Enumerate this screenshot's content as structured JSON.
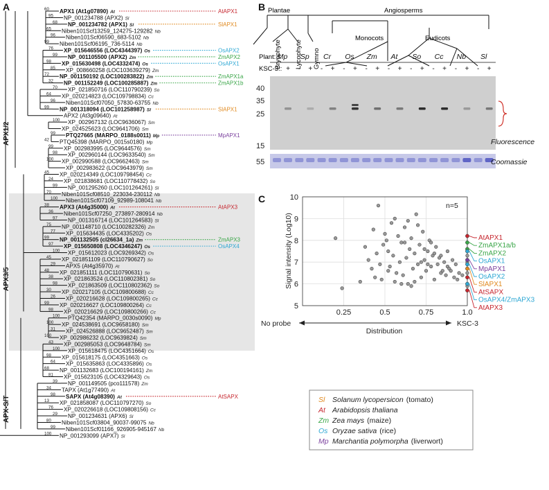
{
  "panels": {
    "a": "A",
    "b": "B",
    "c": "C"
  },
  "colors": {
    "Sl": "#e0891f",
    "At": "#c6262e",
    "Zm": "#3aa648",
    "Os": "#2fa8d4",
    "Mp": "#7a3f9d"
  },
  "panel_a": {
    "clades": [
      "APX1/2",
      "APX3/5",
      "APX-S/T"
    ],
    "leaves": [
      {
        "name": "APX1 (At1g07890)",
        "sp": "At",
        "bold": true,
        "ann": "AtAPX1",
        "annsp": "At",
        "boot": "60"
      },
      {
        "name": "NP_001234788 (APX2)",
        "sp": "Sl",
        "bold": false,
        "ann": "",
        "annsp": "",
        "boot": "95"
      },
      {
        "name": "NP_001234782 (APX1)",
        "sp": "Sl",
        "bold": true,
        "ann": "SlAPX1",
        "annsp": "Sl",
        "boot": "68"
      },
      {
        "name": "Niben101Scf13259_124275-129282",
        "sp": "Nb",
        "bold": false,
        "ann": "",
        "annsp": "",
        "boot": "65"
      },
      {
        "name": "Niben101Scf06590_683-5102",
        "sp": "Nb",
        "bold": false,
        "ann": "",
        "annsp": "",
        "boot": "96"
      },
      {
        "name": "Niben101Scf06195_736-5114",
        "sp": "Nb",
        "bold": false,
        "ann": "",
        "annsp": "",
        "boot": "99"
      },
      {
        "name": "XP_015646556 (LOC4344397)",
        "sp": "Os",
        "bold": true,
        "ann": "OsAPX2",
        "annsp": "Os",
        "boot": "76"
      },
      {
        "name": "NP_001105500 (APX2)",
        "sp": "Zm",
        "bold": true,
        "ann": "ZmAPX2",
        "annsp": "Zm",
        "boot": "99"
      },
      {
        "name": "XP_015630498 (LOC4332474)",
        "sp": "Os",
        "bold": true,
        "ann": "OsAPX1",
        "annsp": "Os",
        "boot": "98"
      },
      {
        "name": "XP_008660258 (LOC103639279)",
        "sp": "Zm",
        "bold": false,
        "ann": "",
        "annsp": "",
        "boot": "85"
      },
      {
        "name": "NP_001150192 (LOC100283822)",
        "sp": "Zm",
        "bold": true,
        "ann": "ZmAPX1a",
        "annsp": "Zm",
        "boot": "72"
      },
      {
        "name": "NP_001152249 (LOC100285887)",
        "sp": "Zm",
        "bold": true,
        "ann": "ZmAPX1b",
        "annsp": "Zm",
        "boot": "32"
      },
      {
        "name": "XP_021850716 (LOC110790239)",
        "sp": "So",
        "bold": false,
        "ann": "",
        "annsp": "",
        "boot": "70"
      },
      {
        "name": "XP_020214823 (LOC109798834)",
        "sp": "Cc",
        "bold": false,
        "ann": "",
        "annsp": "",
        "boot": "64"
      },
      {
        "name": "Niben101Scf07050_57830-63755",
        "sp": "Nb",
        "bold": false,
        "ann": "",
        "annsp": "",
        "boot": "96"
      },
      {
        "name": "NP_001318094 (LOC101258987)",
        "sp": "Sl",
        "bold": true,
        "ann": "SlAPX1",
        "annsp": "Sl",
        "boot": "99"
      },
      {
        "name": "APX2 (At3g09640)",
        "sp": "At",
        "bold": false,
        "ann": "",
        "annsp": "",
        "boot": ""
      },
      {
        "name": "XP_002967132 (LOC9636067)",
        "sp": "Sm",
        "bold": false,
        "ann": "",
        "annsp": "",
        "boot": "100"
      },
      {
        "name": "XP_024525623 (LOC9641706)",
        "sp": "Sm",
        "bold": false,
        "ann": "",
        "annsp": "",
        "boot": ""
      },
      {
        "name": "PTQ27665 (MARPO_0188s0011)",
        "sp": "Mp",
        "bold": true,
        "ann": "MpAPX1",
        "annsp": "Mp",
        "boot": "99"
      },
      {
        "name": "PTQ45398 (MARPO_0015s0180)",
        "sp": "Mp",
        "bold": false,
        "ann": "",
        "annsp": "",
        "boot": "42"
      },
      {
        "name": "XP_002983995 (LOC9644576)",
        "sp": "Sm",
        "bold": false,
        "ann": "",
        "annsp": "",
        "boot": "99"
      },
      {
        "name": "XP_002960144 (LOC9633540)",
        "sp": "Sm",
        "bold": false,
        "ann": "",
        "annsp": "",
        "boot": "98"
      },
      {
        "name": "XP_002990588 (LOC9662463)",
        "sp": "Sm",
        "bold": false,
        "ann": "",
        "annsp": "",
        "boot": "100"
      },
      {
        "name": "XP_002983622 (LOC9643979)",
        "sp": "Sm",
        "bold": false,
        "ann": "",
        "annsp": "",
        "boot": ""
      },
      {
        "name": "XP_020214349 (LOC109798454)",
        "sp": "Cc",
        "bold": false,
        "ann": "",
        "annsp": "",
        "boot": "45"
      },
      {
        "name": "XP_021838681 (LOC110778432)",
        "sp": "So",
        "bold": false,
        "ann": "",
        "annsp": "",
        "boot": "24"
      },
      {
        "name": "NP_001295260 (LOC101264261)",
        "sp": "Sl",
        "bold": false,
        "ann": "",
        "annsp": "",
        "boot": "99"
      },
      {
        "name": "Niben101Scf08510_223034-230112",
        "sp": "Nb",
        "bold": false,
        "ann": "",
        "annsp": "",
        "boot": "70"
      },
      {
        "name": "Niben101Scf07109_92989-108041",
        "sp": "Nb",
        "bold": false,
        "ann": "",
        "annsp": "",
        "boot": "100"
      },
      {
        "name": "APX3 (At4g35000)",
        "sp": "At",
        "bold": true,
        "ann": "AtAPX3",
        "annsp": "At",
        "boot": "38"
      },
      {
        "name": "Niben101Scf07250_273897-280914",
        "sp": "Nb",
        "bold": false,
        "ann": "",
        "annsp": "",
        "boot": "36"
      },
      {
        "name": "NP_001316714 (LOC101264583)",
        "sp": "Sl",
        "bold": false,
        "ann": "",
        "annsp": "",
        "boot": "97"
      },
      {
        "name": "NP_001148710 (LOC100282326)",
        "sp": "Zm",
        "bold": false,
        "ann": "",
        "annsp": "",
        "boot": "75"
      },
      {
        "name": "XP_015634435 (LOC4335202)",
        "sp": "Os",
        "bold": false,
        "ann": "",
        "annsp": "",
        "boot": "77"
      },
      {
        "name": "NP_001132505 (cl26634_1a)",
        "sp": "Zm",
        "bold": true,
        "ann": "ZmAPX3",
        "annsp": "Zm",
        "boot": "99"
      },
      {
        "name": "XP_015650808 (LOC4346247)",
        "sp": "Os",
        "bold": true,
        "ann": "OsAPX4",
        "annsp": "Os",
        "boot": "97"
      },
      {
        "name": "XP_015612023 (LOC9269342)",
        "sp": "Os",
        "bold": false,
        "ann": "",
        "annsp": "",
        "boot": "100"
      },
      {
        "name": "XP_021851109 (LOC110790627)",
        "sp": "So",
        "bold": false,
        "ann": "",
        "annsp": "",
        "boot": "45"
      },
      {
        "name": "APX5 (At4g35970)",
        "sp": "At",
        "bold": false,
        "ann": "",
        "annsp": "",
        "boot": "29"
      },
      {
        "name": "XP_021851111 (LOC110790631)",
        "sp": "So",
        "bold": false,
        "ann": "",
        "annsp": "",
        "boot": "48"
      },
      {
        "name": "XP_021863524 (LOC110802381)",
        "sp": "So",
        "bold": false,
        "ann": "",
        "annsp": "",
        "boot": "38"
      },
      {
        "name": "XP_021863509 (LOC110802362)",
        "sp": "So",
        "bold": false,
        "ann": "",
        "annsp": "",
        "boot": "98"
      },
      {
        "name": "XP_020217105 (LOC109800688)",
        "sp": "Cc",
        "bold": false,
        "ann": "",
        "annsp": "",
        "boot": "30"
      },
      {
        "name": "XP_020216628 (LOC109800265)",
        "sp": "Cc",
        "bold": false,
        "ann": "",
        "annsp": "",
        "boot": "26"
      },
      {
        "name": "XP_020216627 (LOC109800264)",
        "sp": "Cc",
        "bold": false,
        "ann": "",
        "annsp": "",
        "boot": "99"
      },
      {
        "name": "XP_020216629 (LOC109800266)",
        "sp": "Cc",
        "bold": false,
        "ann": "",
        "annsp": "",
        "boot": "98"
      },
      {
        "name": "PTQ42354 (MARPO_0030s0090)",
        "sp": "Mp",
        "bold": false,
        "ann": "",
        "annsp": "",
        "boot": "100"
      },
      {
        "name": "XP_024538691 (LOC9658180)",
        "sp": "Sm",
        "bold": false,
        "ann": "",
        "annsp": "",
        "boot": "100"
      },
      {
        "name": "XP_024526888 (LOC9652487)",
        "sp": "Sm",
        "bold": false,
        "ann": "",
        "annsp": "",
        "boot": "31"
      },
      {
        "name": "XP_002986232 (LOC9639824)",
        "sp": "Sm",
        "bold": false,
        "ann": "",
        "annsp": "",
        "boot": "100"
      },
      {
        "name": "XP_002985053 (LOC9648784)",
        "sp": "Sm",
        "bold": false,
        "ann": "",
        "annsp": "",
        "boot": "43"
      },
      {
        "name": "XP_015618475 (LOC4351664)",
        "sp": "Os",
        "bold": false,
        "ann": "",
        "annsp": "",
        "boot": "100"
      },
      {
        "name": "XP_015618175 (LOC4351663)",
        "sp": "Os",
        "bold": false,
        "ann": "",
        "annsp": "",
        "boot": "98"
      },
      {
        "name": "XP_015635863 (LOC4335896)",
        "sp": "Os",
        "bold": false,
        "ann": "",
        "annsp": "",
        "boot": "64"
      },
      {
        "name": "NP_001132683 (LOC100194161)",
        "sp": "Zm",
        "bold": false,
        "ann": "",
        "annsp": "",
        "boot": "68"
      },
      {
        "name": "XP_015623105 (LOC4329643)",
        "sp": "Os",
        "bold": false,
        "ann": "",
        "annsp": "",
        "boot": "81"
      },
      {
        "name": "NP_001149505 (pco111578)",
        "sp": "Zm",
        "bold": false,
        "ann": "",
        "annsp": "",
        "boot": "39"
      },
      {
        "name": "TAPX (At1g77490)",
        "sp": "At",
        "bold": false,
        "ann": "",
        "annsp": "",
        "boot": "34"
      },
      {
        "name": "SAPX (At4g08390)",
        "sp": "At",
        "bold": true,
        "ann": "AtSAPX",
        "annsp": "At",
        "boot": "98"
      },
      {
        "name": "XP_021858087 (LOC110797270)",
        "sp": "So",
        "bold": false,
        "ann": "",
        "annsp": "",
        "boot": "13"
      },
      {
        "name": "XP_020226618 (LOC109808156)",
        "sp": "Cc",
        "bold": false,
        "ann": "",
        "annsp": "",
        "boot": "76"
      },
      {
        "name": "NP_001234631 (APX6)",
        "sp": "Sl",
        "bold": false,
        "ann": "",
        "annsp": "",
        "boot": "29"
      },
      {
        "name": "Niben101Scf03804_90037-99075",
        "sp": "Nb",
        "bold": false,
        "ann": "",
        "annsp": "",
        "boot": "80"
      },
      {
        "name": "Niben101Scf01166_926905-945167",
        "sp": "Nb",
        "bold": false,
        "ann": "",
        "annsp": "",
        "boot": "99"
      },
      {
        "name": "NP_001293099 (APX7)",
        "sp": "Sl",
        "bold": false,
        "ann": "",
        "annsp": "",
        "boot": "100"
      }
    ]
  },
  "panel_b": {
    "tree_labels": [
      "Plantae",
      "Angiosperms",
      "Bryophyte",
      "Lycophyte",
      "Gymno",
      "Monocots",
      "Eudicots"
    ],
    "plant_label": "Plant:",
    "plants": [
      "Mp",
      "Sp",
      "Cr",
      "Os",
      "Zm",
      "At",
      "So",
      "Cc",
      "Nb",
      "Sl"
    ],
    "ksc_label": "KSC-3::",
    "ksc": [
      "-",
      "+"
    ],
    "mw": [
      "40",
      "35",
      "25",
      "15"
    ],
    "mw2": [
      "55"
    ],
    "fluorescence": "Fluorescence",
    "coomassie": "Coomassie"
  },
  "chart_data": {
    "type": "scatter",
    "title": "",
    "annotation": "n=5",
    "xlabel": "Distribution",
    "ylabel": "Signal intensity (Log10)",
    "x_left_label": "No probe",
    "x_right_label": "KSC-3",
    "xlim": [
      0,
      1
    ],
    "ylim": [
      5,
      10
    ],
    "xticks": [
      "0.25",
      "0.5",
      "0.75",
      "1.0"
    ],
    "yticks": [
      "5",
      "6",
      "7",
      "8",
      "9",
      "10"
    ],
    "points": [
      {
        "x": 0.2,
        "y": 8.1
      },
      {
        "x": 0.24,
        "y": 5.8
      },
      {
        "x": 0.35,
        "y": 6.1
      },
      {
        "x": 0.38,
        "y": 7.7
      },
      {
        "x": 0.4,
        "y": 7.1
      },
      {
        "x": 0.42,
        "y": 6.7
      },
      {
        "x": 0.43,
        "y": 8.5
      },
      {
        "x": 0.44,
        "y": 6.3
      },
      {
        "x": 0.45,
        "y": 7.4
      },
      {
        "x": 0.46,
        "y": 9.6
      },
      {
        "x": 0.47,
        "y": 6.9
      },
      {
        "x": 0.48,
        "y": 6.2
      },
      {
        "x": 0.49,
        "y": 7.8
      },
      {
        "x": 0.5,
        "y": 8.3
      },
      {
        "x": 0.51,
        "y": 8.0
      },
      {
        "x": 0.52,
        "y": 7.5
      },
      {
        "x": 0.53,
        "y": 6.8
      },
      {
        "x": 0.54,
        "y": 8.8
      },
      {
        "x": 0.55,
        "y": 7.3
      },
      {
        "x": 0.56,
        "y": 9.0
      },
      {
        "x": 0.57,
        "y": 6.5
      },
      {
        "x": 0.58,
        "y": 8.2
      },
      {
        "x": 0.59,
        "y": 7.0
      },
      {
        "x": 0.6,
        "y": 7.9
      },
      {
        "x": 0.61,
        "y": 6.4
      },
      {
        "x": 0.62,
        "y": 8.6
      },
      {
        "x": 0.63,
        "y": 7.2
      },
      {
        "x": 0.64,
        "y": 6.0
      },
      {
        "x": 0.65,
        "y": 7.6
      },
      {
        "x": 0.66,
        "y": 8.1
      },
      {
        "x": 0.67,
        "y": 6.7
      },
      {
        "x": 0.68,
        "y": 7.4
      },
      {
        "x": 0.69,
        "y": 9.2
      },
      {
        "x": 0.7,
        "y": 6.9
      },
      {
        "x": 0.71,
        "y": 7.8
      },
      {
        "x": 0.72,
        "y": 6.3
      },
      {
        "x": 0.73,
        "y": 8.4
      },
      {
        "x": 0.74,
        "y": 7.1
      },
      {
        "x": 0.75,
        "y": 6.6
      },
      {
        "x": 0.76,
        "y": 7.5
      },
      {
        "x": 0.77,
        "y": 8.0
      },
      {
        "x": 0.78,
        "y": 6.8
      },
      {
        "x": 0.79,
        "y": 7.3
      },
      {
        "x": 0.8,
        "y": 6.2
      },
      {
        "x": 0.81,
        "y": 7.7
      },
      {
        "x": 0.82,
        "y": 6.9
      },
      {
        "x": 0.83,
        "y": 7.2
      },
      {
        "x": 0.84,
        "y": 6.5
      },
      {
        "x": 0.85,
        "y": 6.6
      },
      {
        "x": 0.86,
        "y": 7.0
      },
      {
        "x": 0.87,
        "y": 6.4
      },
      {
        "x": 0.88,
        "y": 6.8
      },
      {
        "x": 0.89,
        "y": 6.7
      },
      {
        "x": 0.9,
        "y": 6.6
      },
      {
        "x": 0.91,
        "y": 7.1
      },
      {
        "x": 0.92,
        "y": 6.3
      },
      {
        "x": 0.93,
        "y": 6.9
      },
      {
        "x": 0.94,
        "y": 6.2
      },
      {
        "x": 0.95,
        "y": 6.5
      },
      {
        "x": 0.97,
        "y": 6.4
      },
      {
        "x": 0.56,
        "y": 6.1
      },
      {
        "x": 0.62,
        "y": 7.9
      },
      {
        "x": 0.66,
        "y": 5.9
      },
      {
        "x": 0.7,
        "y": 8.7
      },
      {
        "x": 0.74,
        "y": 7.6
      },
      {
        "x": 0.78,
        "y": 7.9
      },
      {
        "x": 0.52,
        "y": 6.6
      },
      {
        "x": 0.6,
        "y": 6.0
      },
      {
        "x": 0.64,
        "y": 8.9
      },
      {
        "x": 0.68,
        "y": 6.1
      },
      {
        "x": 0.72,
        "y": 7.0
      },
      {
        "x": 0.76,
        "y": 6.9
      },
      {
        "x": 0.8,
        "y": 7.4
      },
      {
        "x": 0.84,
        "y": 7.3
      },
      {
        "x": 0.88,
        "y": 7.5
      },
      {
        "x": 1.0,
        "y": 8.2
      },
      {
        "x": 1.0,
        "y": 7.9
      },
      {
        "x": 1.0,
        "y": 7.6
      },
      {
        "x": 1.0,
        "y": 7.5
      },
      {
        "x": 1.0,
        "y": 7.3
      },
      {
        "x": 1.0,
        "y": 7.1
      },
      {
        "x": 1.0,
        "y": 7.0
      },
      {
        "x": 1.0,
        "y": 6.9
      },
      {
        "x": 1.0,
        "y": 6.7
      },
      {
        "x": 1.0,
        "y": 6.5
      },
      {
        "x": 1.0,
        "y": 6.3
      },
      {
        "x": 1.0,
        "y": 6.0
      },
      {
        "x": 1.0,
        "y": 5.9
      },
      {
        "x": 1.0,
        "y": 5.7
      }
    ],
    "labels": [
      {
        "text": "AtAPX1",
        "color": "#c6262e",
        "y": 8.2
      },
      {
        "text": "ZmAPX1a/b",
        "color": "#3aa648",
        "y": 7.9
      },
      {
        "text": "ZmAPX2",
        "color": "#3aa648",
        "y": 7.6
      },
      {
        "text": "OsAPX1",
        "color": "#2fa8d4",
        "y": 7.5
      },
      {
        "text": "MpAPX1",
        "color": "#7a3f9d",
        "y": 7.1
      },
      {
        "text": "OsAPX2",
        "color": "#2fa8d4",
        "y": 6.9
      },
      {
        "text": "SlAPX1",
        "color": "#e0891f",
        "y": 6.7
      },
      {
        "text": "AtSAPX",
        "color": "#c6262e",
        "y": 6.3
      },
      {
        "text": "OsAPX4/ZmAPX3",
        "color": "#2fa8d4",
        "y": 6.0
      },
      {
        "text": "AtAPX3",
        "color": "#c6262e",
        "y": 5.7
      }
    ]
  },
  "legend": [
    {
      "abbr": "Sl",
      "name": "Solanum lycopersicon",
      "common": "(tomato)",
      "color": "#e0891f"
    },
    {
      "abbr": "At",
      "name": "Arabidopsis thaliana",
      "common": "",
      "color": "#c6262e"
    },
    {
      "abbr": "Zm",
      "name": "Zea mays",
      "common": "(maize)",
      "color": "#3aa648"
    },
    {
      "abbr": "Os",
      "name": "Oryzae sativa",
      "common": "(rice)",
      "color": "#2fa8d4"
    },
    {
      "abbr": "Mp",
      "name": "Marchantia polymorpha",
      "common": "(liverwort)",
      "color": "#7a3f9d"
    }
  ]
}
